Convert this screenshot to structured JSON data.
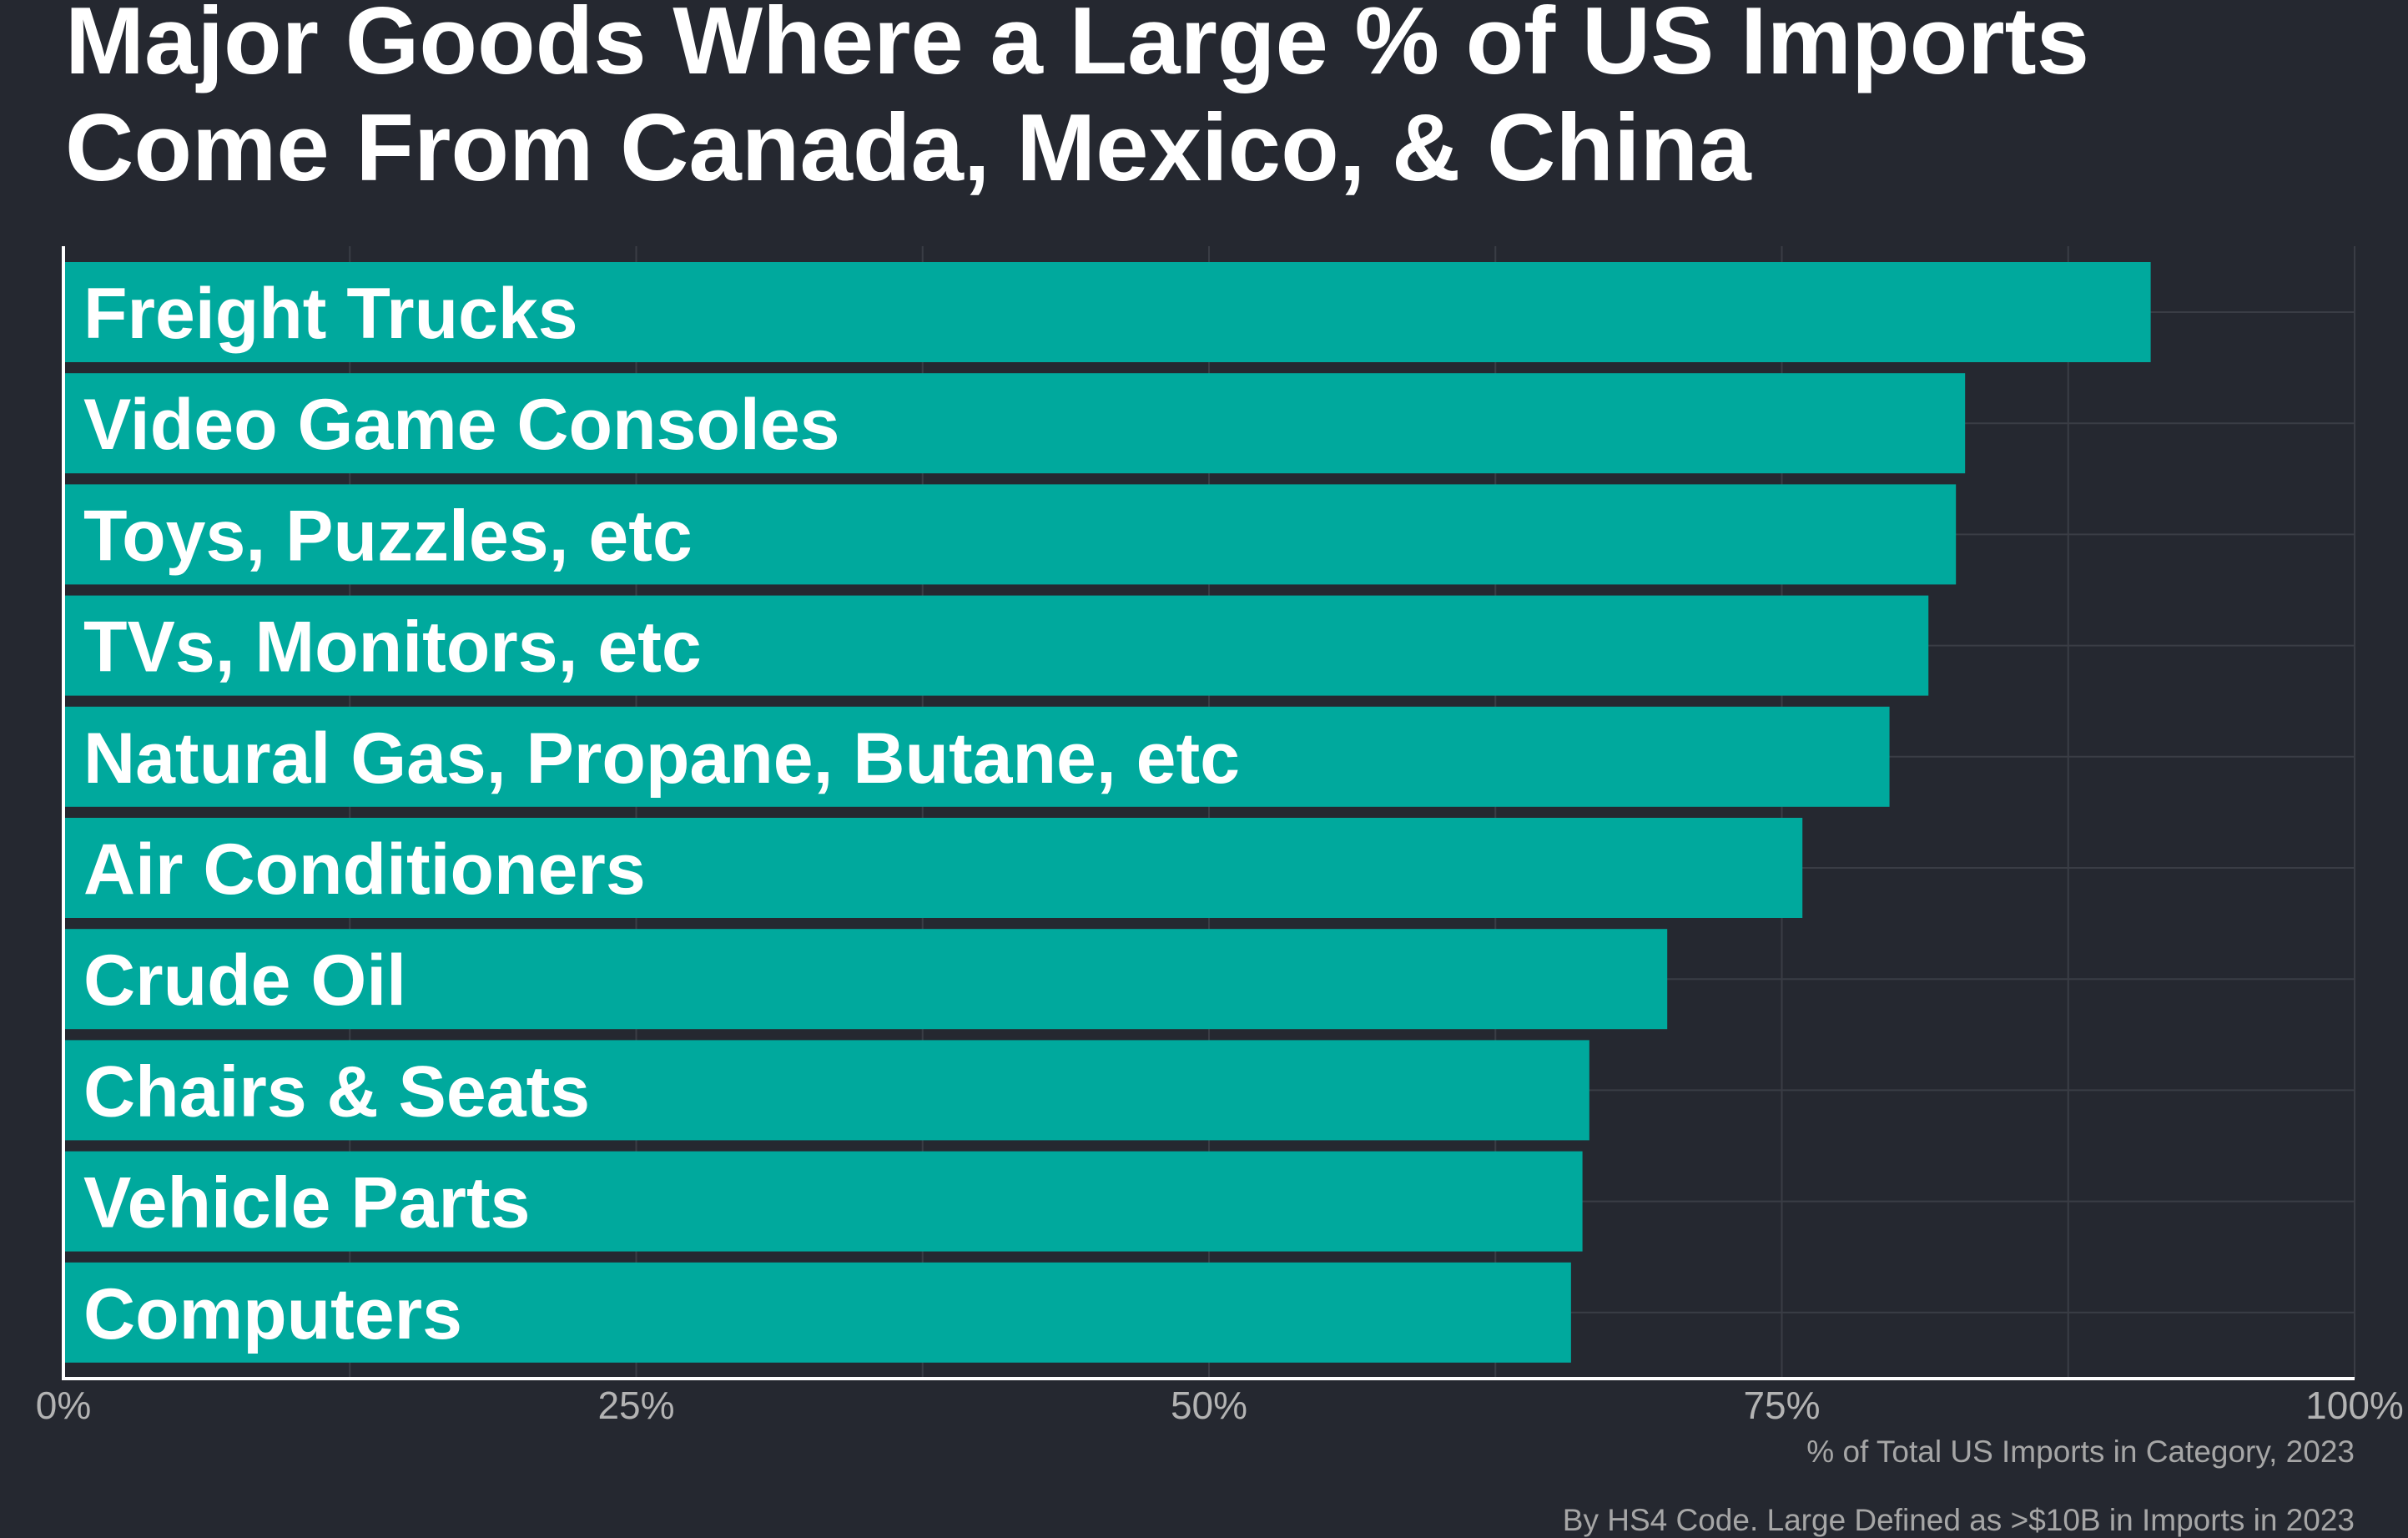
{
  "title_lines": [
    "Major Goods Where a Large % of US Imports",
    "Come From Canada, Mexico, & China"
  ],
  "colors": {
    "background": "#252830",
    "bar": "#00a99d",
    "text": "#ffffff",
    "tick_text": "#b3b3b3",
    "grid": "#3a3d45",
    "axis": "#ffffff"
  },
  "chart_data": {
    "type": "bar",
    "orientation": "horizontal",
    "title": "Major Goods Where a Large % of US Imports Come From Canada, Mexico, & China",
    "categories": [
      "Freight Trucks",
      "Video Game Consoles",
      "Toys, Puzzles, etc",
      "TVs, Monitors, etc",
      "Natural Gas, Propane, Butane, etc",
      "Air Conditioners",
      "Crude Oil",
      "Chairs & Seats",
      "Vehicle Parts",
      "Computers"
    ],
    "values": [
      91.1,
      83.0,
      82.6,
      81.4,
      79.7,
      75.9,
      70.0,
      66.6,
      66.3,
      65.8
    ],
    "value_unit": "%",
    "xlim": [
      0,
      100
    ],
    "x_ticks": [
      0,
      25,
      50,
      75,
      100
    ],
    "x_tick_labels": [
      "0%",
      "25%",
      "50%",
      "75%",
      "100%"
    ],
    "xlabel": "% of Total US Imports in Category, 2023",
    "caption": "By HS4 Code. Large Defined as >$10B in Imports in 2023",
    "grid": true,
    "legend": "none"
  }
}
